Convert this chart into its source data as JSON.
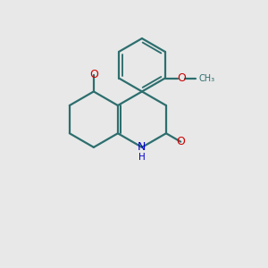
{
  "bg_color": "#e8e8e8",
  "bond_color": "#2d6e6e",
  "bond_width": 1.6,
  "N_color": "#0000cc",
  "O_color": "#cc0000",
  "font_size": 9.0,
  "fig_size": [
    3.0,
    3.0
  ],
  "dpi": 100,
  "xlim": [
    0,
    10
  ],
  "ylim": [
    0,
    10
  ]
}
